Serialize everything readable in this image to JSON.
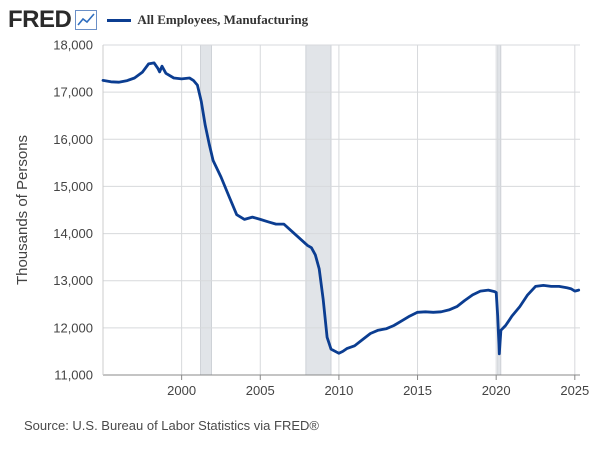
{
  "header": {
    "logo_text": "FRED",
    "logo_icon": "trend-line-icon"
  },
  "legend": {
    "label": "All Employees, Manufacturing",
    "color": "#0b3d91"
  },
  "source": "Source: U.S. Bureau of Labor Statistics via FRED®",
  "chart_data": {
    "type": "line",
    "title": "All Employees, Manufacturing",
    "xlabel": "",
    "ylabel": "Thousands of Persons",
    "xlim": [
      1995.0,
      2025.33
    ],
    "ylim": [
      11000,
      18000
    ],
    "yticks": [
      11000,
      12000,
      13000,
      14000,
      15000,
      16000,
      17000,
      18000
    ],
    "ytick_labels": [
      "11,000",
      "12,000",
      "13,000",
      "14,000",
      "15,000",
      "16,000",
      "17,000",
      "18,000"
    ],
    "xticks": [
      2000,
      2005,
      2010,
      2015,
      2020,
      2025
    ],
    "xtick_labels": [
      "2000",
      "2005",
      "2010",
      "2015",
      "2020",
      "2025"
    ],
    "grid": true,
    "recessions": [
      [
        2001.2,
        2001.9
      ],
      [
        2007.9,
        2009.5
      ],
      [
        2020.1,
        2020.3
      ]
    ],
    "series": [
      {
        "name": "All Employees, Manufacturing",
        "color": "#0b3d91",
        "x": [
          1995.0,
          1995.5,
          1996.0,
          1996.5,
          1997.0,
          1997.5,
          1997.9,
          1998.25,
          1998.5,
          1998.6,
          1998.75,
          1999.0,
          1999.5,
          2000.0,
          2000.5,
          2000.75,
          2001.0,
          2001.25,
          2001.5,
          2001.75,
          2002.0,
          2002.5,
          2003.0,
          2003.5,
          2004.0,
          2004.5,
          2005.0,
          2005.5,
          2006.0,
          2006.5,
          2007.0,
          2007.5,
          2008.0,
          2008.25,
          2008.5,
          2008.75,
          2009.0,
          2009.25,
          2009.5,
          2010.0,
          2010.25,
          2010.5,
          2011.0,
          2011.5,
          2012.0,
          2012.5,
          2013.0,
          2013.5,
          2014.0,
          2014.5,
          2015.0,
          2015.5,
          2016.0,
          2016.5,
          2017.0,
          2017.5,
          2018.0,
          2018.5,
          2019.0,
          2019.5,
          2019.9,
          2020.0,
          2020.1,
          2020.2,
          2020.3,
          2020.45,
          2020.6,
          2020.8,
          2021.0,
          2021.5,
          2022.0,
          2022.5,
          2023.0,
          2023.5,
          2024.0,
          2024.5,
          2024.75,
          2025.0,
          2025.25
        ],
        "values": [
          17250,
          17220,
          17210,
          17240,
          17300,
          17420,
          17600,
          17620,
          17500,
          17430,
          17550,
          17400,
          17300,
          17280,
          17300,
          17250,
          17150,
          16800,
          16300,
          15900,
          15550,
          15200,
          14800,
          14400,
          14300,
          14350,
          14300,
          14250,
          14200,
          14200,
          14050,
          13900,
          13750,
          13700,
          13550,
          13250,
          12600,
          11800,
          11550,
          11460,
          11500,
          11560,
          11620,
          11750,
          11880,
          11950,
          11980,
          12050,
          12150,
          12250,
          12330,
          12340,
          12330,
          12340,
          12380,
          12450,
          12580,
          12700,
          12780,
          12800,
          12770,
          12750,
          12250,
          11450,
          11950,
          12000,
          12050,
          12150,
          12250,
          12450,
          12700,
          12880,
          12900,
          12880,
          12880,
          12850,
          12830,
          12780,
          12800
        ]
      }
    ]
  }
}
